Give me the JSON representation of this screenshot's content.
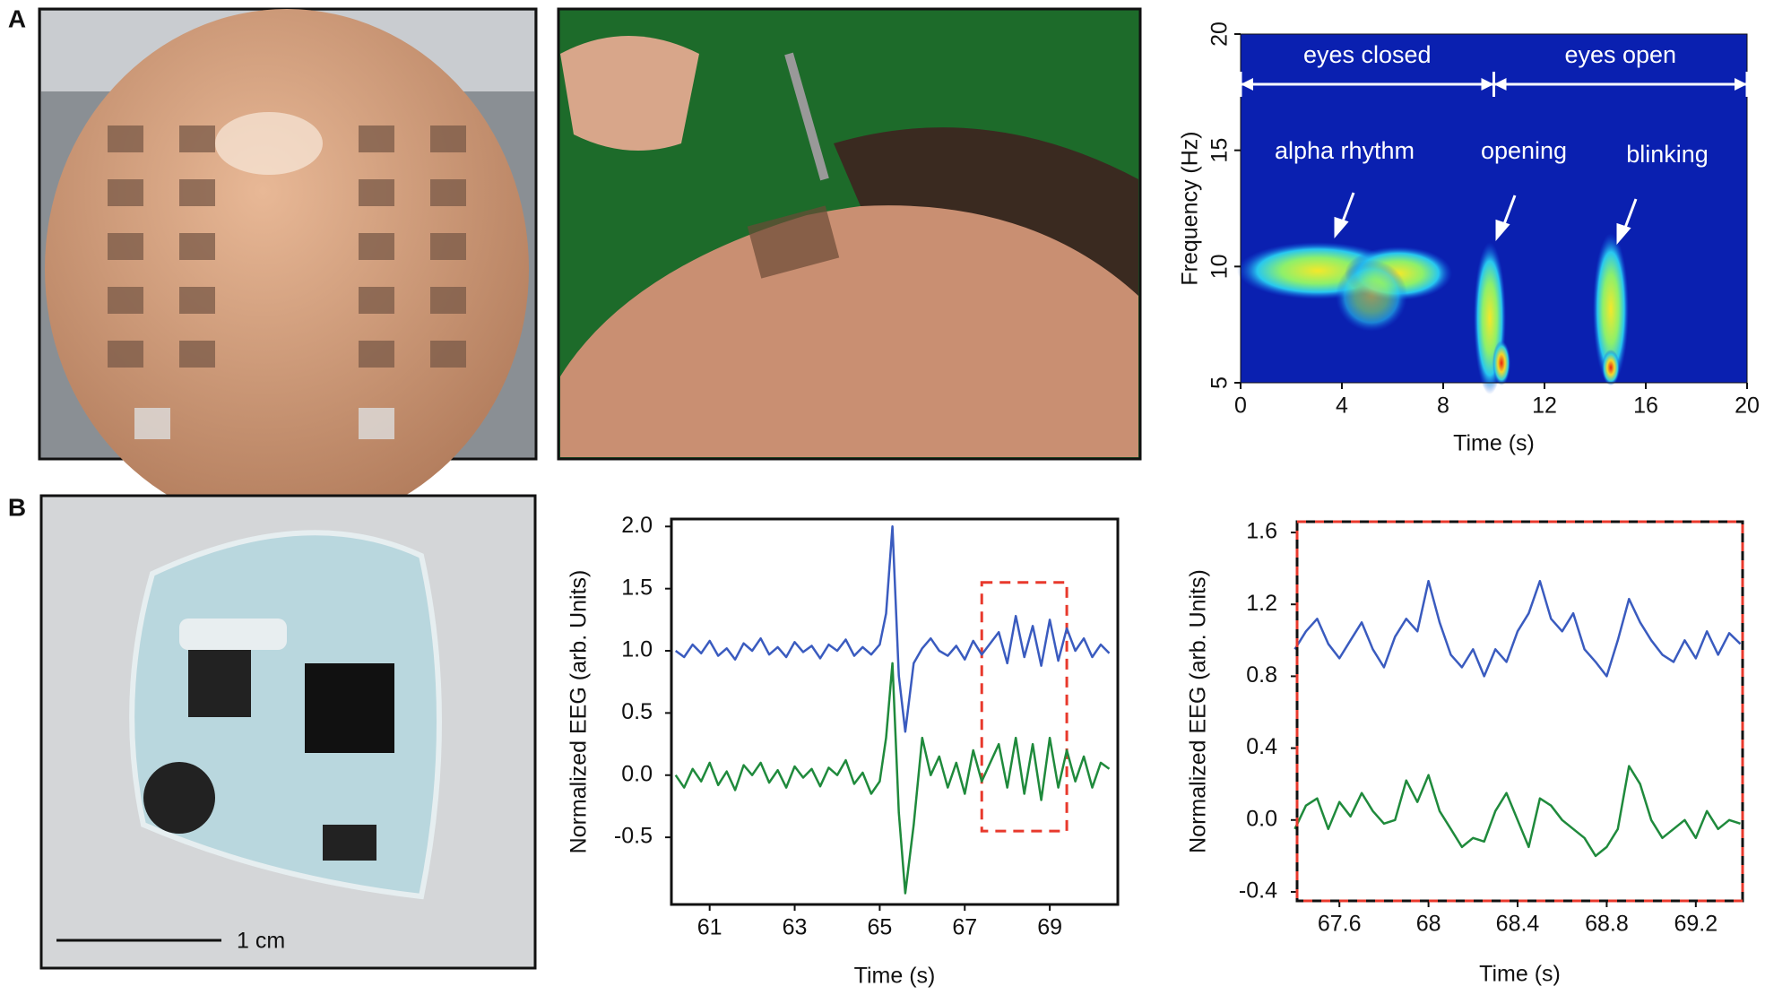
{
  "panel_labels": [
    "A",
    "B"
  ],
  "scale_bar": "1 cm",
  "chart_data": [
    {
      "type": "heatmap",
      "xlabel": "Time (s)",
      "ylabel": "Frequency (Hz)",
      "xlim": [
        0,
        20
      ],
      "xticks": [
        0,
        4,
        8,
        12,
        16,
        20
      ],
      "ylim": [
        5,
        20
      ],
      "yticks": [
        5,
        10,
        15,
        20
      ],
      "intervals": [
        {
          "label": "eyes closed",
          "xlim": [
            0,
            10
          ]
        },
        {
          "label": "eyes open",
          "xlim": [
            10,
            20
          ]
        }
      ],
      "annotations": [
        "alpha rhythm",
        "opening",
        "blinking"
      ]
    },
    {
      "type": "line",
      "xlabel": "Time (s)",
      "ylabel": "Normalized EEG (arb. Units)",
      "xlim": [
        60.1,
        70.6
      ],
      "xticks": [
        61,
        63,
        65,
        67,
        69
      ],
      "ylim": [
        -1.04,
        2.06
      ],
      "yticks": [
        -0.5,
        {
          "value": 0,
          "label": "0.0"
        },
        0.5,
        {
          "value": 1,
          "label": "1.0"
        },
        1.5,
        {
          "value": 2,
          "label": "2.0"
        }
      ],
      "highlight": {
        "xlim": [
          67.4,
          69.4
        ],
        "ylim": [
          -0.45,
          1.55
        ],
        "color": "#e8392c"
      },
      "x": [
        60.2,
        60.4,
        60.6,
        60.8,
        61.0,
        61.2,
        61.4,
        61.6,
        61.8,
        62.0,
        62.2,
        62.4,
        62.6,
        62.8,
        63.0,
        63.2,
        63.4,
        63.6,
        63.8,
        64.0,
        64.2,
        64.4,
        64.6,
        64.8,
        65.0,
        65.15,
        65.3,
        65.45,
        65.6,
        65.8,
        66.0,
        66.2,
        66.4,
        66.6,
        66.8,
        67.0,
        67.2,
        67.4,
        67.6,
        67.8,
        68.0,
        68.2,
        68.4,
        68.6,
        68.8,
        69.0,
        69.2,
        69.4,
        69.6,
        69.8,
        70.0,
        70.2,
        70.4
      ],
      "series": [
        {
          "color": "#3a5bbf",
          "values": [
            1.0,
            0.95,
            1.05,
            0.98,
            1.08,
            0.96,
            1.02,
            0.93,
            1.06,
            1.0,
            1.1,
            0.97,
            1.03,
            0.95,
            1.07,
            0.99,
            1.04,
            0.94,
            1.05,
            1.0,
            1.09,
            0.96,
            1.03,
            0.97,
            1.05,
            1.3,
            2.0,
            0.8,
            0.35,
            0.9,
            1.02,
            1.1,
            1.0,
            0.96,
            1.04,
            0.93,
            1.08,
            0.97,
            1.06,
            1.15,
            0.9,
            1.28,
            0.95,
            1.2,
            0.88,
            1.25,
            0.92,
            1.18,
            1.0,
            1.1,
            0.95,
            1.05,
            0.98
          ]
        },
        {
          "color": "#1f8a3c",
          "values": [
            0.0,
            -0.1,
            0.05,
            -0.05,
            0.1,
            -0.08,
            0.03,
            -0.12,
            0.08,
            0.0,
            0.1,
            -0.06,
            0.04,
            -0.1,
            0.07,
            -0.02,
            0.05,
            -0.09,
            0.06,
            0.0,
            0.12,
            -0.07,
            0.02,
            -0.15,
            -0.05,
            0.3,
            0.9,
            -0.3,
            -0.95,
            -0.4,
            0.3,
            0.0,
            0.15,
            -0.1,
            0.1,
            -0.15,
            0.2,
            -0.05,
            0.1,
            0.25,
            -0.1,
            0.3,
            -0.15,
            0.25,
            -0.2,
            0.3,
            -0.1,
            0.2,
            -0.05,
            0.15,
            -0.1,
            0.1,
            0.05
          ]
        }
      ]
    },
    {
      "type": "line",
      "xlabel": "Time (s)",
      "ylabel": "Normalized EEG (arb. Units)",
      "xlim": [
        67.41,
        69.41
      ],
      "xticks": [
        67.6,
        68,
        68.4,
        68.8,
        69.2
      ],
      "ylim": [
        -0.45,
        1.66
      ],
      "yticks": [
        -0.4,
        {
          "value": 0,
          "label": "0.0"
        },
        0.4,
        0.8,
        1.2,
        1.6
      ],
      "frame_color": "#e8392c",
      "x": [
        67.4,
        67.45,
        67.5,
        67.55,
        67.6,
        67.65,
        67.7,
        67.75,
        67.8,
        67.85,
        67.9,
        67.95,
        68.0,
        68.05,
        68.1,
        68.15,
        68.2,
        68.25,
        68.3,
        68.35,
        68.4,
        68.45,
        68.5,
        68.55,
        68.6,
        68.65,
        68.7,
        68.75,
        68.8,
        68.85,
        68.9,
        68.95,
        69.0,
        69.05,
        69.1,
        69.15,
        69.2,
        69.25,
        69.3,
        69.35,
        69.4
      ],
      "series": [
        {
          "color": "#3a5bbf",
          "values": [
            0.95,
            1.05,
            1.12,
            0.98,
            0.9,
            1.0,
            1.1,
            0.95,
            0.85,
            1.02,
            1.12,
            1.05,
            1.33,
            1.1,
            0.92,
            0.85,
            0.95,
            0.8,
            0.95,
            0.88,
            1.05,
            1.15,
            1.33,
            1.12,
            1.05,
            1.15,
            0.95,
            0.88,
            0.8,
            1.0,
            1.23,
            1.1,
            1.0,
            0.92,
            0.88,
            1.0,
            0.9,
            1.05,
            0.92,
            1.04,
            0.98
          ]
        },
        {
          "color": "#1f8a3c",
          "values": [
            -0.05,
            0.08,
            0.12,
            -0.05,
            0.1,
            0.02,
            0.15,
            0.05,
            -0.02,
            0.0,
            0.22,
            0.1,
            0.25,
            0.05,
            -0.05,
            -0.15,
            -0.1,
            -0.12,
            0.05,
            0.15,
            0.0,
            -0.15,
            0.12,
            0.08,
            0.0,
            -0.05,
            -0.1,
            -0.2,
            -0.15,
            -0.05,
            0.3,
            0.2,
            0.0,
            -0.1,
            -0.05,
            0.0,
            -0.1,
            0.05,
            -0.05,
            0.0,
            -0.02
          ]
        }
      ]
    }
  ]
}
